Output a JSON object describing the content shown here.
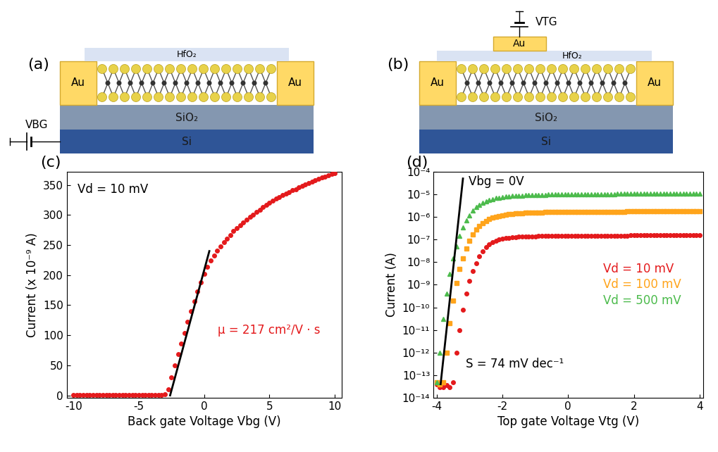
{
  "diagrams": [
    {
      "panel_label": "(a)",
      "layers": {
        "top": "HfO₂",
        "oxide": "SiO₂",
        "substrate": "Si"
      },
      "contacts": [
        "Au",
        "Au"
      ],
      "gate": {
        "label": "VBG"
      }
    },
    {
      "panel_label": "(b)",
      "layers": {
        "top": "HfO₂",
        "oxide": "SiO₂",
        "substrate": "Si"
      },
      "contacts": [
        "Au",
        "Au"
      ],
      "top_gate": "Au",
      "gate": {
        "label": "VTG"
      }
    }
  ],
  "chart_data": [
    {
      "type": "scatter",
      "panel_label": "(c)",
      "x_label": "Back gate Voltage Vbg (V)",
      "y_label": "Current (x 10⁻⁹ A)",
      "xlim": [
        -10.5,
        10.5
      ],
      "ylim": [
        -4,
        372
      ],
      "xticks": [
        -10,
        -5,
        0,
        5,
        10
      ],
      "yticks": [
        0,
        50,
        100,
        150,
        200,
        250,
        300,
        350
      ],
      "annotations": [
        {
          "text": "Vd = 10 mV"
        },
        {
          "text": "μ = 217 cm²/V · s",
          "color": "#e41a1c"
        }
      ],
      "x": [
        -10,
        -9.75,
        -9.5,
        -9.25,
        -9,
        -8.75,
        -8.5,
        -8.25,
        -8,
        -7.75,
        -7.5,
        -7.25,
        -7,
        -6.75,
        -6.5,
        -6.25,
        -6,
        -5.75,
        -5.5,
        -5.25,
        -5,
        -4.75,
        -4.5,
        -4.25,
        -4,
        -3.75,
        -3.5,
        -3.25,
        -3,
        -2.75,
        -2.5,
        -2.25,
        -2,
        -1.75,
        -1.5,
        -1.25,
        -1,
        -0.75,
        -0.5,
        -0.25,
        0,
        0.25,
        0.5,
        0.75,
        1,
        1.25,
        1.5,
        1.75,
        2,
        2.25,
        2.5,
        2.75,
        3,
        3.25,
        3.5,
        3.75,
        4,
        4.25,
        4.5,
        4.75,
        5,
        5.25,
        5.5,
        5.75,
        6,
        6.25,
        6.5,
        6.75,
        7,
        7.25,
        7.5,
        7.75,
        8,
        8.25,
        8.5,
        8.75,
        9,
        9.25,
        9.5,
        9.75,
        10
      ],
      "series": [
        {
          "color": "#e41a1c",
          "marker": "circle",
          "values": [
            1,
            1,
            1,
            1,
            1,
            1,
            1,
            1,
            1,
            1,
            1,
            1,
            1,
            1,
            1,
            1,
            1,
            1,
            1,
            1,
            1,
            1,
            1,
            1,
            1,
            1,
            1,
            1,
            2,
            10,
            30,
            50,
            68,
            86,
            104,
            122,
            140,
            157,
            173,
            188,
            202,
            214,
            224,
            233,
            241,
            248,
            255,
            261,
            267,
            273,
            278,
            283,
            288,
            292,
            297,
            301,
            305,
            309,
            313,
            317,
            320,
            324,
            327,
            330,
            333,
            336,
            338,
            341,
            343,
            346,
            348,
            351,
            353,
            356,
            358,
            360,
            362,
            364,
            366,
            368,
            370
          ]
        },
        {
          "type": "line",
          "color": "#000000",
          "x": [
            -2.6,
            0.4
          ],
          "values": [
            0,
            240
          ]
        }
      ]
    },
    {
      "type": "scatter",
      "panel_label": "(d)",
      "log": "y",
      "x_label": "Top gate Voltage Vtg (V)",
      "y_label": "Current (A)",
      "xlim": [
        -4.1,
        4.1
      ],
      "ylim": [
        1e-14,
        0.0001
      ],
      "xticks": [
        -4,
        -2,
        0,
        2,
        4
      ],
      "yticks": [
        {
          "value": 1e-14,
          "label": "10⁻¹⁴"
        },
        {
          "value": 1e-13,
          "label": "10⁻¹³"
        },
        {
          "value": 1e-12,
          "label": "10⁻¹²"
        },
        {
          "value": 1e-11,
          "label": "10⁻¹¹"
        },
        {
          "value": 1e-10,
          "label": "10⁻¹⁰"
        },
        {
          "value": 1e-09,
          "label": "10⁻⁹"
        },
        {
          "value": 1e-08,
          "label": "10⁻⁸"
        },
        {
          "value": 1e-07,
          "label": "10⁻⁷"
        },
        {
          "value": 1e-06,
          "label": "10⁻⁶"
        },
        {
          "value": 1e-05,
          "label": "10⁻⁵"
        },
        {
          "value": 0.0001,
          "label": "10⁻⁴"
        }
      ],
      "annotations": [
        {
          "text": "Vbg = 0V"
        },
        {
          "text": "S = 74 mV dec⁻¹"
        }
      ],
      "x": [
        -4,
        -3.9,
        -3.8,
        -3.7,
        -3.6,
        -3.5,
        -3.4,
        -3.3,
        -3.2,
        -3.1,
        -3,
        -2.9,
        -2.8,
        -2.7,
        -2.6,
        -2.5,
        -2.4,
        -2.3,
        -2.2,
        -2.1,
        -2,
        -1.9,
        -1.8,
        -1.7,
        -1.6,
        -1.5,
        -1.4,
        -1.3,
        -1.2,
        -1.1,
        -1,
        -0.9,
        -0.8,
        -0.7,
        -0.6,
        -0.5,
        -0.4,
        -0.3,
        -0.2,
        -0.1,
        0,
        0.1,
        0.2,
        0.3,
        0.4,
        0.5,
        0.6,
        0.7,
        0.8,
        0.9,
        1,
        1.1,
        1.2,
        1.3,
        1.4,
        1.5,
        1.6,
        1.7,
        1.8,
        1.9,
        2,
        2.1,
        2.2,
        2.3,
        2.4,
        2.5,
        2.6,
        2.7,
        2.8,
        2.9,
        3,
        3.1,
        3.2,
        3.3,
        3.4,
        3.5,
        3.6,
        3.7,
        3.8,
        3.9,
        4
      ],
      "series": [
        {
          "name": "Vd = 10 mV",
          "color": "#e41a1c",
          "marker": "circle",
          "values": [
            4e-14,
            3e-14,
            3e-14,
            3.5e-14,
            3e-14,
            5e-14,
            1e-12,
            1e-11,
            8e-11,
            4e-10,
            1.5e-09,
            4e-09,
            9e-09,
            1.8e-08,
            3e-08,
            4.5e-08,
            6e-08,
            7.5e-08,
            8.8e-08,
            1e-07,
            1.08e-07,
            1.15e-07,
            1.2e-07,
            1.25e-07,
            1.28e-07,
            1.31e-07,
            1.33e-07,
            1.35e-07,
            1.37e-07,
            1.38e-07,
            1.4e-07,
            1.41e-07,
            1.41e-07,
            1.42e-07,
            1.42e-07,
            1.43e-07,
            1.43e-07,
            1.44e-07,
            1.44e-07,
            1.45e-07,
            1.45e-07,
            1.45e-07,
            1.46e-07,
            1.46e-07,
            1.47e-07,
            1.47e-07,
            1.47e-07,
            1.48e-07,
            1.48e-07,
            1.48e-07,
            1.49e-07,
            1.49e-07,
            1.49e-07,
            1.5e-07,
            1.5e-07,
            1.5e-07,
            1.51e-07,
            1.51e-07,
            1.51e-07,
            1.52e-07,
            1.52e-07,
            1.52e-07,
            1.52e-07,
            1.53e-07,
            1.53e-07,
            1.53e-07,
            1.53e-07,
            1.54e-07,
            1.54e-07,
            1.54e-07,
            1.54e-07,
            1.54e-07,
            1.55e-07,
            1.55e-07,
            1.55e-07,
            1.55e-07,
            1.55e-07,
            1.56e-07,
            1.56e-07,
            1.56e-07,
            1.56e-07
          ]
        },
        {
          "name": "Vd = 100 mV",
          "color": "#ffa41b",
          "marker": "square",
          "values": [
            5e-14,
            4e-14,
            5e-14,
            1e-12,
            2e-11,
            2e-10,
            1.2e-09,
            5e-09,
            1.5e-08,
            4e-08,
            9e-08,
            1.7e-07,
            2.8e-07,
            4e-07,
            5.3e-07,
            6.7e-07,
            8e-07,
            9.2e-07,
            1.03e-06,
            1.12e-06,
            1.2e-06,
            1.27e-06,
            1.33e-06,
            1.38e-06,
            1.42e-06,
            1.46e-06,
            1.49e-06,
            1.52e-06,
            1.54e-06,
            1.56e-06,
            1.58e-06,
            1.6e-06,
            1.61e-06,
            1.62e-06,
            1.63e-06,
            1.64e-06,
            1.65e-06,
            1.65e-06,
            1.66e-06,
            1.67e-06,
            1.67e-06,
            1.68e-06,
            1.68e-06,
            1.69e-06,
            1.69e-06,
            1.7e-06,
            1.7e-06,
            1.7e-06,
            1.71e-06,
            1.71e-06,
            1.71e-06,
            1.72e-06,
            1.72e-06,
            1.72e-06,
            1.73e-06,
            1.73e-06,
            1.73e-06,
            1.73e-06,
            1.74e-06,
            1.74e-06,
            1.74e-06,
            1.74e-06,
            1.75e-06,
            1.75e-06,
            1.75e-06,
            1.75e-06,
            1.76e-06,
            1.76e-06,
            1.76e-06,
            1.76e-06,
            1.76e-06,
            1.77e-06,
            1.77e-06,
            1.77e-06,
            1.77e-06,
            1.77e-06,
            1.78e-06,
            1.78e-06,
            1.78e-06,
            1.78e-06,
            1.78e-06
          ]
        },
        {
          "name": "Vd = 500 mV",
          "color": "#4cbb4c",
          "marker": "triangle",
          "values": [
            5e-14,
            1e-12,
            3e-11,
            4e-10,
            3e-09,
            1.5e-08,
            5e-08,
            1.5e-07,
            3.5e-07,
            7e-07,
            1.2e-06,
            1.9e-06,
            2.7e-06,
            3.5e-06,
            4.3e-06,
            5e-06,
            5.7e-06,
            6.3e-06,
            6.8e-06,
            7.2e-06,
            7.6e-06,
            7.9e-06,
            8.2e-06,
            8.4e-06,
            8.6e-06,
            8.8e-06,
            8.95e-06,
            9.1e-06,
            9.2e-06,
            9.3e-06,
            9.4e-06,
            9.5e-06,
            9.6e-06,
            9.65e-06,
            9.7e-06,
            9.75e-06,
            9.8e-06,
            9.85e-06,
            9.9e-06,
            9.95e-06,
            1e-05,
            1.005e-05,
            1.01e-05,
            1.013e-05,
            1.016e-05,
            1.02e-05,
            1.022e-05,
            1.025e-05,
            1.028e-05,
            1.03e-05,
            1.032e-05,
            1.034e-05,
            1.036e-05,
            1.038e-05,
            1.04e-05,
            1.042e-05,
            1.043e-05,
            1.045e-05,
            1.046e-05,
            1.048e-05,
            1.05e-05,
            1.051e-05,
            1.052e-05,
            1.053e-05,
            1.054e-05,
            1.055e-05,
            1.056e-05,
            1.057e-05,
            1.058e-05,
            1.059e-05,
            1.06e-05,
            1.06e-05,
            1.061e-05,
            1.062e-05,
            1.063e-05,
            1.064e-05,
            1.065e-05,
            1.066e-05,
            1.067e-05,
            1.068e-05,
            1.069e-05
          ]
        },
        {
          "type": "line",
          "color": "#000000",
          "x": [
            -3.88,
            -3.2
          ],
          "values": [
            4e-14,
            5e-05
          ]
        }
      ]
    }
  ]
}
